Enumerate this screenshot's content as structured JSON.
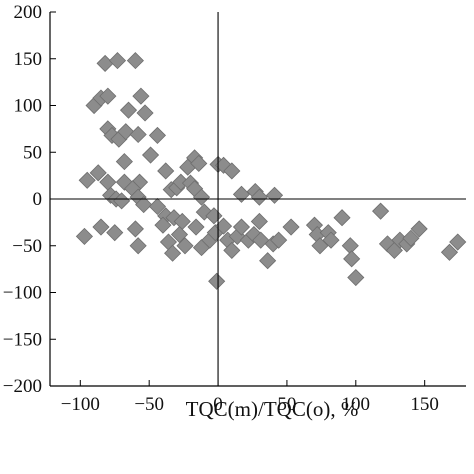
{
  "chart_data": {
    "type": "scatter",
    "title": "",
    "xlabel": "TQC(m)/TQC(o), %",
    "ylabel": "",
    "xlim": [
      -122,
      180
    ],
    "ylim": [
      -200,
      200
    ],
    "x_ticks": [
      -100,
      -50,
      0,
      50,
      100,
      150
    ],
    "x_tick_labels": [
      "−100",
      "−50",
      "0",
      "50",
      "100",
      "150"
    ],
    "y_ticks": [
      200,
      150,
      100,
      50,
      0,
      -50,
      -100,
      -150,
      -200
    ],
    "y_tick_labels": [
      "200",
      "150",
      "100",
      "50",
      "0",
      "−50",
      "−100",
      "−150",
      "−200"
    ],
    "zero_lines": true,
    "grid": false,
    "legend": "none",
    "marker": "diamond",
    "marker_color": "#8c8c8c",
    "marker_edge_color": "#6e6e6e",
    "series": [
      {
        "name": "",
        "points": [
          [
            -82,
            145
          ],
          [
            -73,
            148
          ],
          [
            -60,
            148
          ],
          [
            -90,
            100
          ],
          [
            -85,
            108
          ],
          [
            -80,
            110
          ],
          [
            -65,
            95
          ],
          [
            -56,
            110
          ],
          [
            -53,
            92
          ],
          [
            -80,
            75
          ],
          [
            -77,
            68
          ],
          [
            -72,
            64
          ],
          [
            -67,
            72
          ],
          [
            -58,
            69
          ],
          [
            -44,
            68
          ],
          [
            -49,
            47
          ],
          [
            -68,
            40
          ],
          [
            -87,
            28
          ],
          [
            -95,
            20
          ],
          [
            -80,
            18
          ],
          [
            -68,
            18
          ],
          [
            -57,
            18
          ],
          [
            -38,
            30
          ],
          [
            -22,
            34
          ],
          [
            -17,
            44
          ],
          [
            -14,
            38
          ],
          [
            0,
            37
          ],
          [
            4,
            36
          ],
          [
            10,
            30
          ],
          [
            -34,
            10
          ],
          [
            -30,
            12
          ],
          [
            -27,
            18
          ],
          [
            -20,
            17
          ],
          [
            -62,
            11
          ],
          [
            -78,
            4
          ],
          [
            -74,
            0
          ],
          [
            -70,
            -2
          ],
          [
            -58,
            2
          ],
          [
            -54,
            -6
          ],
          [
            -44,
            -8
          ],
          [
            -38,
            -18
          ],
          [
            -32,
            -20
          ],
          [
            -26,
            -24
          ],
          [
            -17,
            11
          ],
          [
            -12,
            2
          ],
          [
            -10,
            -14
          ],
          [
            -3,
            -18
          ],
          [
            17,
            5
          ],
          [
            27,
            8
          ],
          [
            30,
            2
          ],
          [
            41,
            4
          ],
          [
            -97,
            -40
          ],
          [
            -85,
            -30
          ],
          [
            -75,
            -36
          ],
          [
            -60,
            -32
          ],
          [
            -58,
            -50
          ],
          [
            -40,
            -28
          ],
          [
            -36,
            -46
          ],
          [
            -33,
            -58
          ],
          [
            -28,
            -38
          ],
          [
            -24,
            -50
          ],
          [
            -16,
            -30
          ],
          [
            -12,
            -52
          ],
          [
            -6,
            -44
          ],
          [
            -2,
            -36
          ],
          [
            4,
            -29
          ],
          [
            7,
            -44
          ],
          [
            10,
            -55
          ],
          [
            14,
            -40
          ],
          [
            17,
            -30
          ],
          [
            22,
            -44
          ],
          [
            26,
            -38
          ],
          [
            30,
            -24
          ],
          [
            31,
            -44
          ],
          [
            36,
            -66
          ],
          [
            40,
            -48
          ],
          [
            44,
            -44
          ],
          [
            53,
            -30
          ],
          [
            -1,
            -88
          ],
          [
            70,
            -28
          ],
          [
            72,
            -38
          ],
          [
            74,
            -50
          ],
          [
            80,
            -36
          ],
          [
            82,
            -44
          ],
          [
            90,
            -20
          ],
          [
            96,
            -50
          ],
          [
            97,
            -64
          ],
          [
            100,
            -84
          ],
          [
            118,
            -13
          ],
          [
            123,
            -48
          ],
          [
            128,
            -55
          ],
          [
            132,
            -44
          ],
          [
            137,
            -48
          ],
          [
            140,
            -42
          ],
          [
            146,
            -32
          ],
          [
            168,
            -57
          ],
          [
            174,
            -46
          ]
        ]
      }
    ]
  }
}
